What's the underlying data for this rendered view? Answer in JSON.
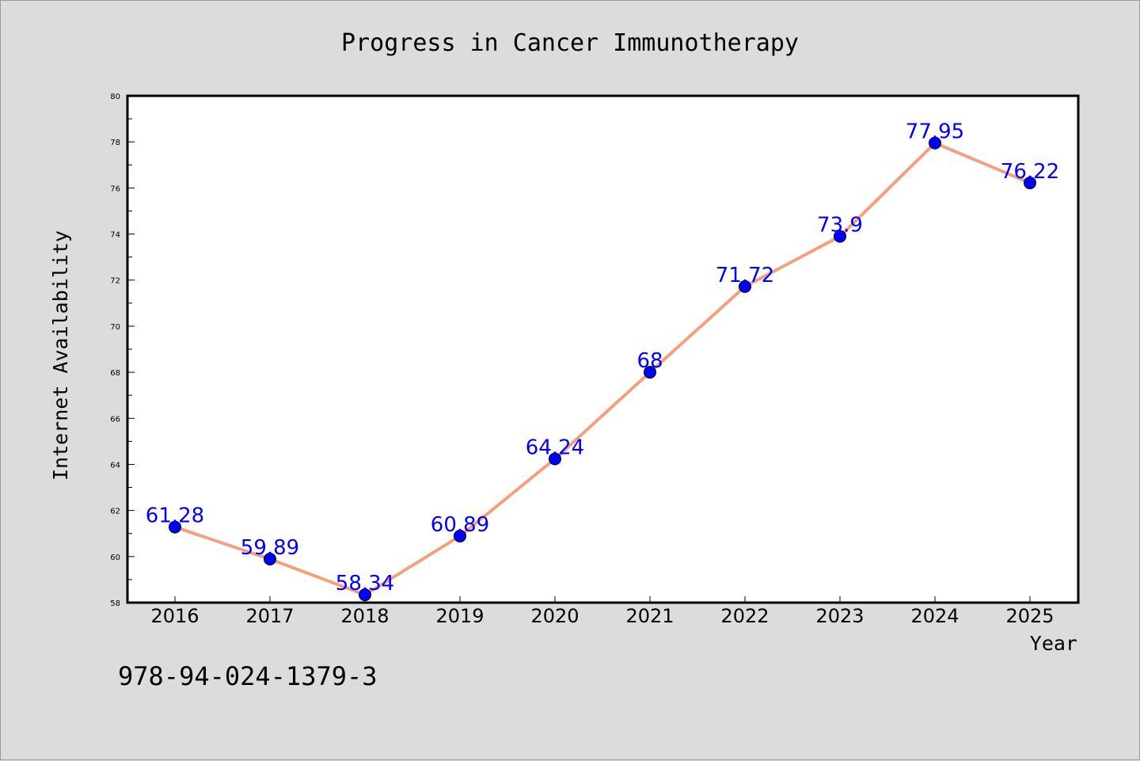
{
  "chart_data": {
    "type": "line",
    "title": "Progress in Cancer Immunotherapy",
    "xlabel": "Year",
    "ylabel": "Internet Availability",
    "categories": [
      "2016",
      "2017",
      "2018",
      "2019",
      "2020",
      "2021",
      "2022",
      "2023",
      "2024",
      "2025"
    ],
    "series": [
      {
        "values": [
          61.28,
          59.89,
          58.34,
          60.89,
          64.24,
          68,
          71.72,
          73.9,
          77.95,
          76.22
        ],
        "labels": [
          "61.28",
          "59.89",
          "58.34",
          "60.89",
          "64.24",
          "68",
          "71.72",
          "73.9",
          "77.95",
          "76.22"
        ],
        "line_color": "#f4a07c",
        "marker_color": "#0000ff"
      }
    ],
    "ylim": [
      58,
      80
    ],
    "yticks": [
      "58",
      "60",
      "62",
      "64",
      "66",
      "68",
      "70",
      "72",
      "74",
      "76",
      "78",
      "80"
    ],
    "grid": false,
    "legend": "none"
  },
  "footer": {
    "isbn": "978-94-024-1379-3"
  },
  "colors": {
    "background": "#dcdcdc",
    "plot_background": "#ffffff",
    "line": "#f4a07c",
    "marker": "#0000ff",
    "data_label": "#0000ff"
  }
}
